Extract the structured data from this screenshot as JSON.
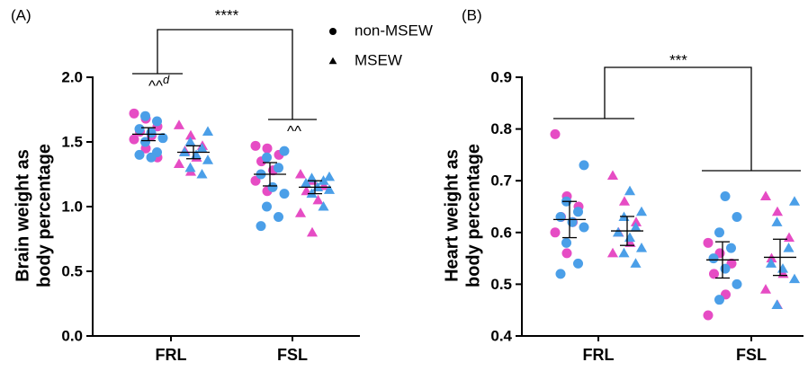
{
  "chart_data": [
    {
      "type": "scatter",
      "panel_label": "(A)",
      "y_label": [
        "Brain weight as",
        "body percentage"
      ],
      "categories": [
        "FRL",
        "FSL"
      ],
      "ylim": [
        0,
        2
      ],
      "yticks": [
        {
          "value": 0,
          "label": "0.0"
        },
        0.5,
        {
          "value": 1,
          "label": "1.0"
        },
        1.5,
        {
          "value": 2,
          "label": "2.0"
        }
      ],
      "legend": [
        {
          "name": "non-MSEW",
          "marker": "circle"
        },
        {
          "name": "MSEW",
          "marker": "triangle"
        }
      ],
      "annotations": {
        "main": "****",
        "frl": {
          "text": "^^",
          "superscript": "d"
        },
        "fsl": "^^"
      },
      "series": [
        {
          "name": "non-MSEW",
          "marker": "circle",
          "groups": [
            {
              "mean": 1.56,
              "error": 0.05,
              "subsets": [
                {
                  "color": "#e64cc4",
                  "values": [
                    1.72,
                    1.68,
                    1.62,
                    1.58,
                    1.55,
                    1.52,
                    1.45,
                    1.38
                  ]
                },
                {
                  "color": "#4b9fe8",
                  "values": [
                    1.7,
                    1.66,
                    1.6,
                    1.57,
                    1.53,
                    1.5,
                    1.42,
                    1.4,
                    1.38
                  ]
                }
              ]
            },
            {
              "mean": 1.25,
              "error": 0.09,
              "subsets": [
                {
                  "color": "#e64cc4",
                  "values": [
                    1.47,
                    1.45,
                    1.4,
                    1.35,
                    1.28,
                    1.2,
                    1.12
                  ]
                },
                {
                  "color": "#4b9fe8",
                  "values": [
                    1.43,
                    1.38,
                    1.3,
                    1.25,
                    1.15,
                    1.1,
                    1.0,
                    0.92,
                    0.85
                  ]
                }
              ]
            }
          ]
        },
        {
          "name": "MSEW",
          "marker": "triangle",
          "groups": [
            {
              "mean": 1.42,
              "error": 0.05,
              "subsets": [
                {
                  "color": "#e64cc4",
                  "values": [
                    1.63,
                    1.55,
                    1.47,
                    1.43,
                    1.38,
                    1.33,
                    1.27
                  ]
                },
                {
                  "color": "#4b9fe8",
                  "values": [
                    1.58,
                    1.5,
                    1.45,
                    1.42,
                    1.4,
                    1.36,
                    1.3,
                    1.25
                  ]
                }
              ]
            },
            {
              "mean": 1.15,
              "error": 0.05,
              "subsets": [
                {
                  "color": "#e64cc4",
                  "values": [
                    1.25,
                    1.2,
                    1.16,
                    1.12,
                    1.05,
                    0.95,
                    0.8
                  ]
                },
                {
                  "color": "#4b9fe8",
                  "values": [
                    1.23,
                    1.22,
                    1.2,
                    1.18,
                    1.15,
                    1.13,
                    1.1,
                    1.0
                  ]
                }
              ]
            }
          ]
        }
      ]
    },
    {
      "type": "scatter",
      "panel_label": "(B)",
      "y_label": [
        "Heart weight as",
        "body percentage"
      ],
      "categories": [
        "FRL",
        "FSL"
      ],
      "ylim": [
        0.4,
        0.9
      ],
      "yticks": [
        0.4,
        0.5,
        0.6,
        0.7,
        0.8,
        0.9
      ],
      "annotations": {
        "main": "***"
      },
      "series": [
        {
          "name": "non-MSEW",
          "marker": "circle",
          "groups": [
            {
              "mean": 0.625,
              "error": 0.035,
              "subsets": [
                {
                  "color": "#e64cc4",
                  "values": [
                    0.79,
                    0.67,
                    0.65,
                    0.63,
                    0.62,
                    0.6,
                    0.56
                  ]
                },
                {
                  "color": "#4b9fe8",
                  "values": [
                    0.73,
                    0.66,
                    0.64,
                    0.63,
                    0.62,
                    0.61,
                    0.58,
                    0.54,
                    0.52
                  ]
                }
              ]
            },
            {
              "mean": 0.547,
              "error": 0.035,
              "subsets": [
                {
                  "color": "#e64cc4",
                  "values": [
                    0.58,
                    0.56,
                    0.54,
                    0.52,
                    0.48,
                    0.44
                  ]
                },
                {
                  "color": "#4b9fe8",
                  "values": [
                    0.67,
                    0.63,
                    0.6,
                    0.57,
                    0.55,
                    0.53,
                    0.5,
                    0.47
                  ]
                }
              ]
            }
          ]
        },
        {
          "name": "MSEW",
          "marker": "triangle",
          "groups": [
            {
              "mean": 0.603,
              "error": 0.028,
              "subsets": [
                {
                  "color": "#e64cc4",
                  "values": [
                    0.71,
                    0.66,
                    0.62,
                    0.6,
                    0.58,
                    0.56
                  ]
                },
                {
                  "color": "#4b9fe8",
                  "values": [
                    0.68,
                    0.64,
                    0.63,
                    0.61,
                    0.6,
                    0.59,
                    0.57,
                    0.56,
                    0.54
                  ]
                }
              ]
            },
            {
              "mean": 0.552,
              "error": 0.035,
              "subsets": [
                {
                  "color": "#e64cc4",
                  "values": [
                    0.67,
                    0.64,
                    0.59,
                    0.55,
                    0.52,
                    0.49,
                    0.46
                  ]
                },
                {
                  "color": "#4b9fe8",
                  "values": [
                    0.66,
                    0.62,
                    0.57,
                    0.54,
                    0.53,
                    0.51,
                    0.46
                  ]
                }
              ]
            }
          ]
        }
      ]
    }
  ]
}
